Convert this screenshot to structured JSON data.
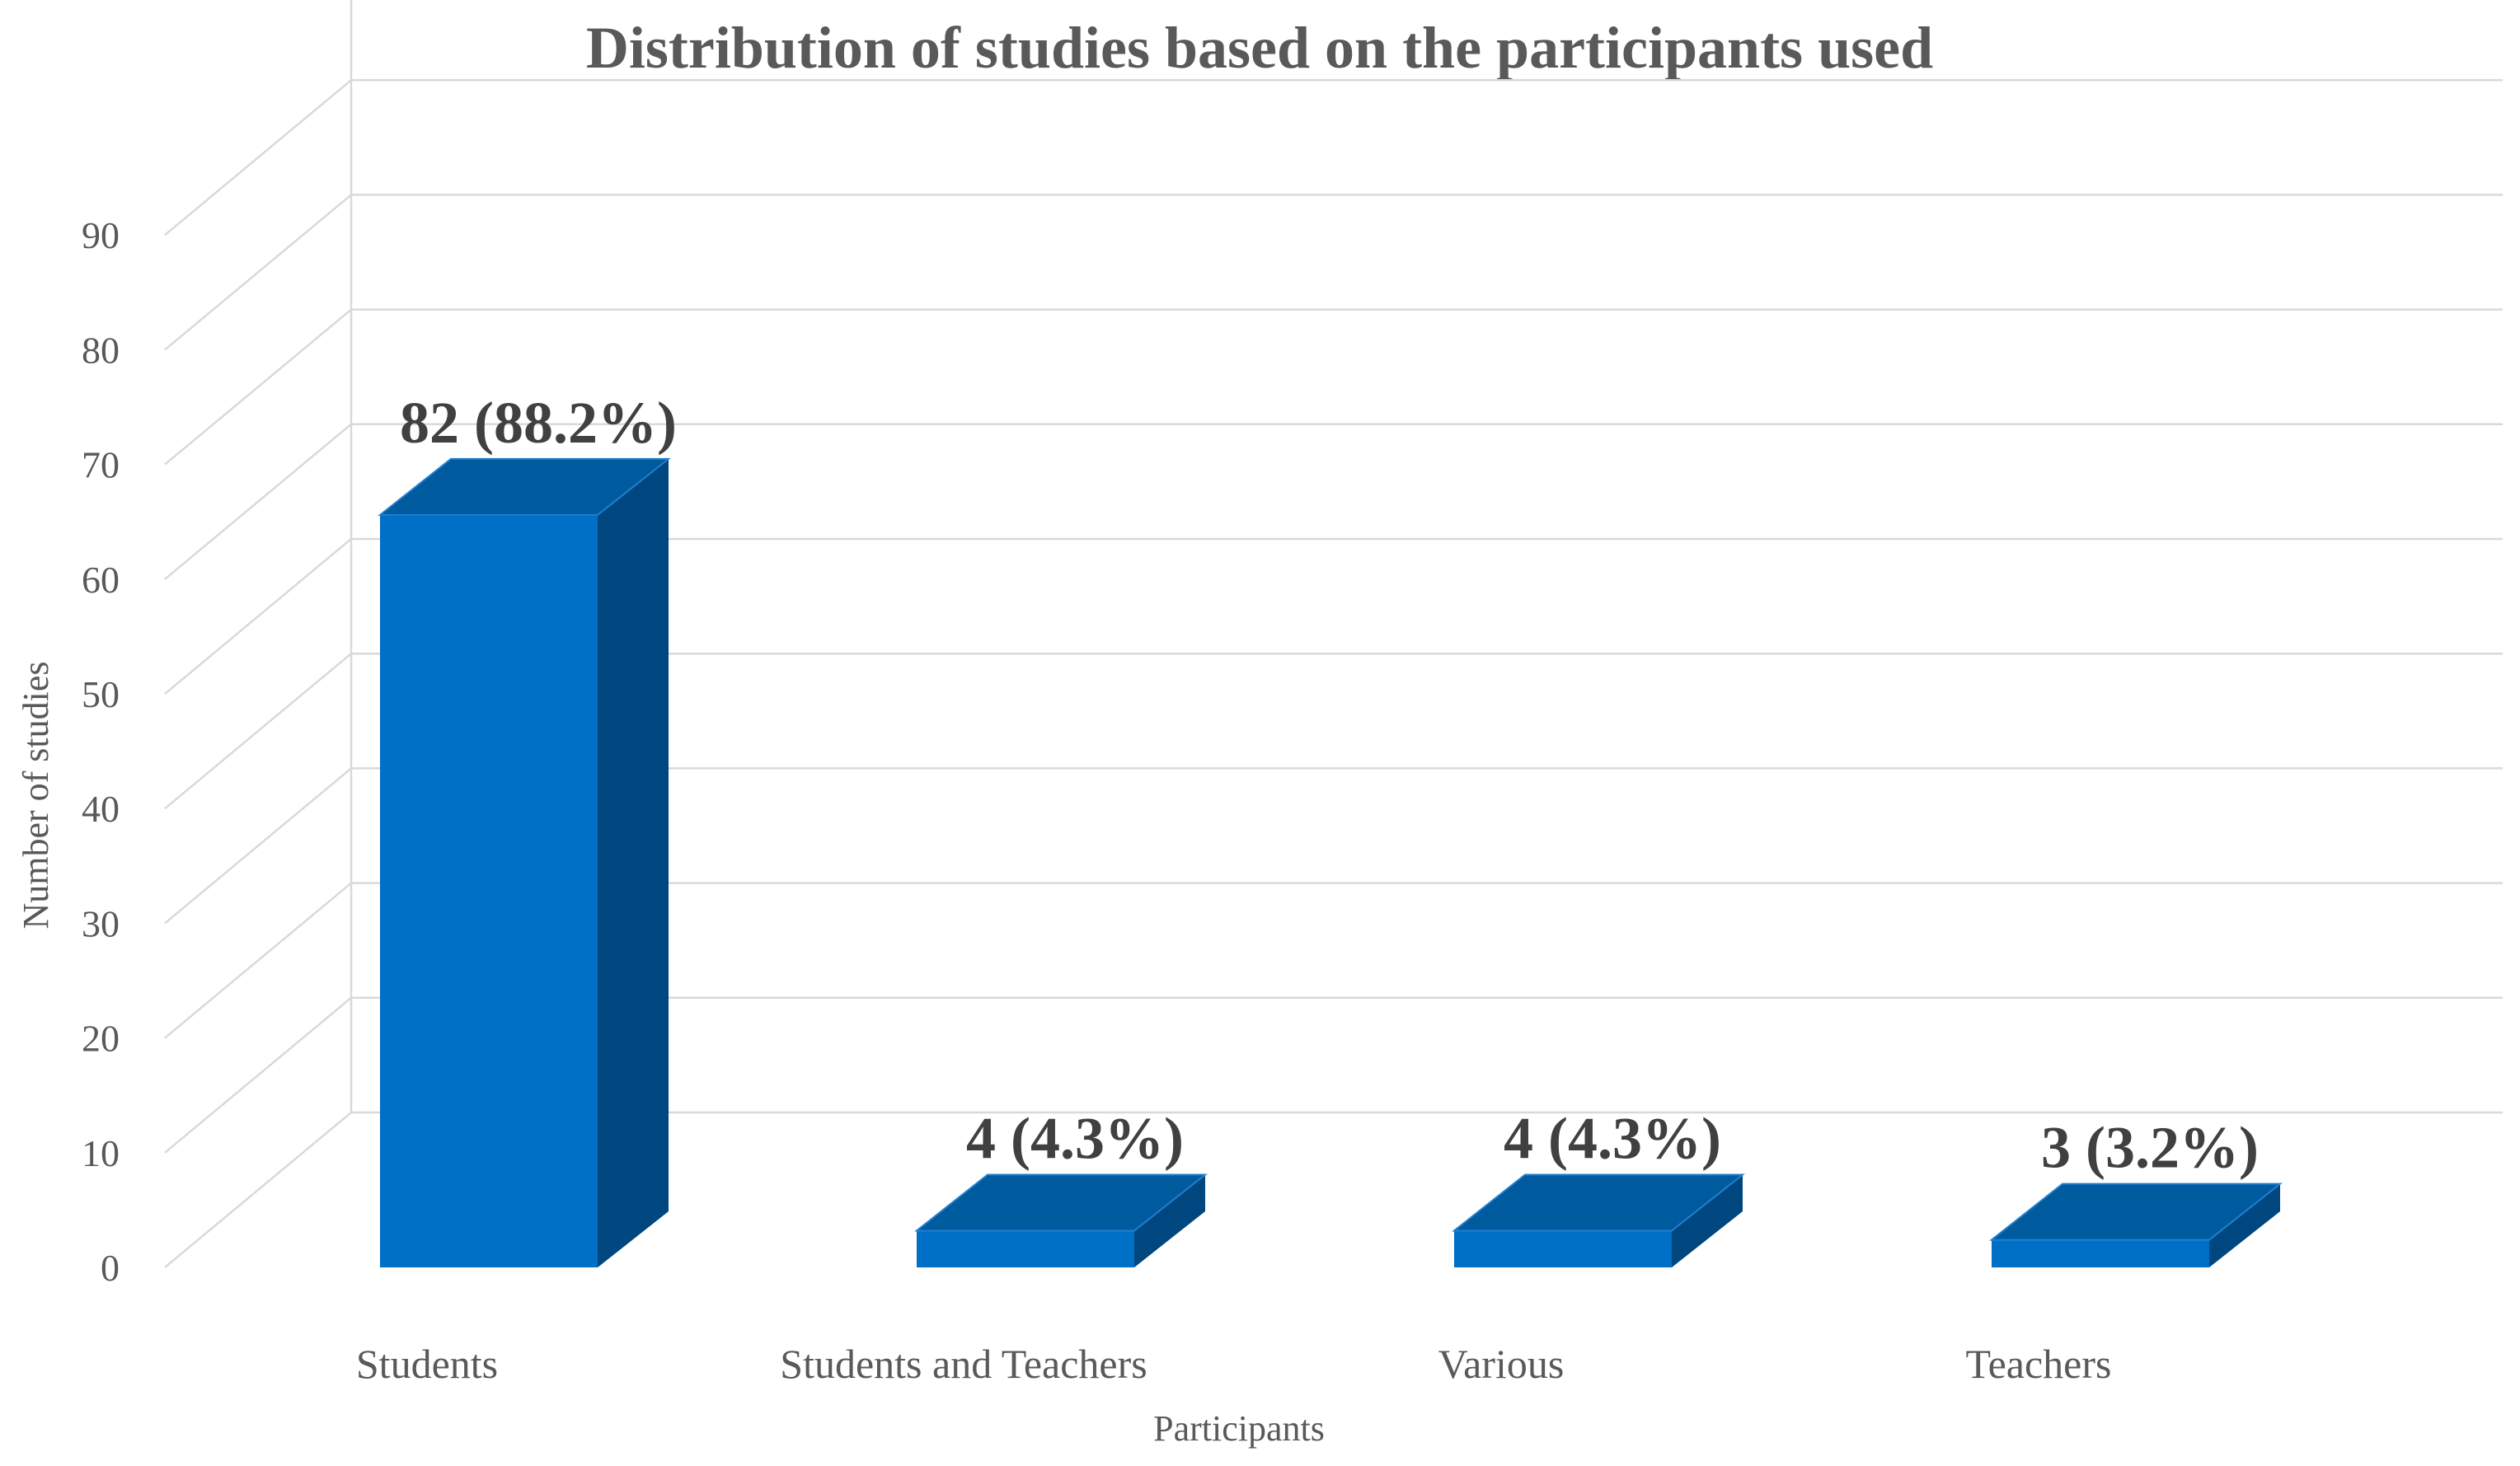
{
  "chart_data": {
    "type": "bar",
    "title": "Distribution of studies based on the participants used",
    "xlabel": "Participants",
    "ylabel": "Number of studies",
    "categories": [
      "Students",
      "Students and Teachers",
      "Various",
      "Teachers"
    ],
    "values": [
      82,
      4,
      4,
      3
    ],
    "data_labels": [
      "82 (88.2%)",
      "4 (4.3%)",
      "4 (4.3%)",
      "3 (3.2%)"
    ],
    "yticks": [
      "0",
      "10",
      "20",
      "30",
      "40",
      "50",
      "60",
      "70",
      "80",
      "90"
    ],
    "ylim": [
      0,
      90
    ],
    "grid": true,
    "legend": "none",
    "style": "3d-column",
    "colors": {
      "front": "#0070C6",
      "top": "#005A9E",
      "side": "#00467F",
      "grid": "#D9D9D9",
      "text": "#595959",
      "label": "#404040"
    }
  }
}
